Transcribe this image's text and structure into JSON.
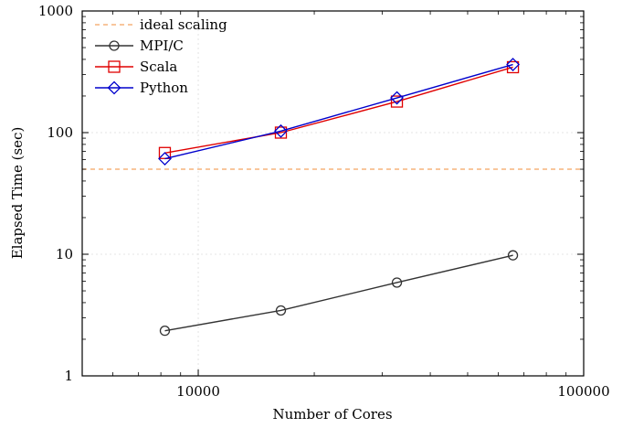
{
  "chart_data": {
    "type": "line",
    "title": "",
    "xlabel": "Number of Cores",
    "ylabel": "Elapsed Time (sec)",
    "xscale": "log",
    "yscale": "log",
    "xlim": [
      5000,
      100000
    ],
    "ylim": [
      1,
      1000
    ],
    "grid": true,
    "legend_position": "top-left",
    "x_ticks": [
      {
        "value": 10000,
        "label": "10000"
      },
      {
        "value": 100000,
        "label": "100000"
      }
    ],
    "y_ticks": [
      {
        "value": 1,
        "label": "1"
      },
      {
        "value": 10,
        "label": "10"
      },
      {
        "value": 100,
        "label": "100"
      },
      {
        "value": 1000,
        "label": "1000"
      }
    ],
    "reference_lines": [
      {
        "name": "ideal scaling",
        "y": 50,
        "color": "#f4a460",
        "style": "dashed"
      }
    ],
    "series": [
      {
        "name": "MPI/C",
        "color": "#333333",
        "marker": "circle",
        "x": [
          8192,
          16384,
          32768,
          65536
        ],
        "y": [
          2.35,
          3.45,
          5.85,
          9.8
        ]
      },
      {
        "name": "Scala",
        "color": "#e00000",
        "marker": "square",
        "x": [
          8192,
          16384,
          32768,
          65536
        ],
        "y": [
          68,
          100,
          180,
          345
        ]
      },
      {
        "name": "Python",
        "color": "#0000cc",
        "marker": "diamond",
        "x": [
          8192,
          16384,
          32768,
          65536
        ],
        "y": [
          61,
          103,
          193,
          363
        ]
      }
    ]
  }
}
